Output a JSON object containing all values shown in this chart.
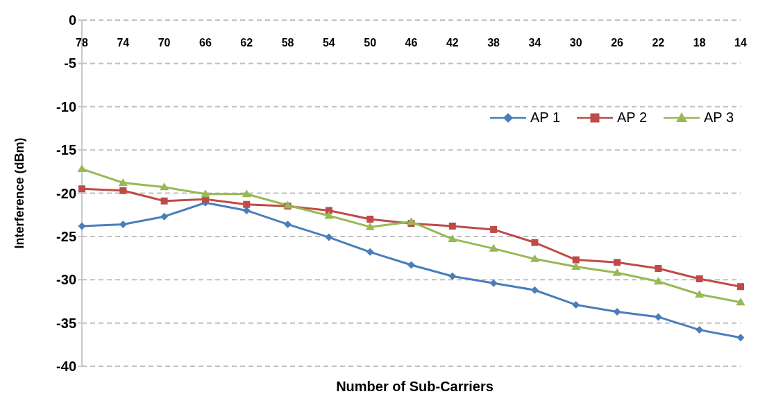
{
  "chart_data": {
    "type": "line",
    "xlabel": "Number of Sub-Carriers",
    "ylabel": "Interference (dBm)",
    "categories": [
      "78",
      "74",
      "70",
      "66",
      "62",
      "58",
      "54",
      "50",
      "46",
      "42",
      "38",
      "34",
      "30",
      "26",
      "22",
      "18",
      "14"
    ],
    "series": [
      {
        "name": "AP 1",
        "color": "#4a7ebb",
        "marker": "diamond",
        "values": [
          -23.8,
          -23.6,
          -22.7,
          -21.1,
          -22.0,
          -23.6,
          -25.1,
          -26.8,
          -28.3,
          -29.6,
          -30.4,
          -31.2,
          -32.9,
          -33.7,
          -34.3,
          -35.8,
          -36.7
        ]
      },
      {
        "name": "AP 2",
        "color": "#be4b48",
        "marker": "square",
        "values": [
          -19.5,
          -19.7,
          -20.9,
          -20.7,
          -21.3,
          -21.5,
          -22.0,
          -23.0,
          -23.5,
          -23.8,
          -24.2,
          -25.7,
          -27.7,
          -28.0,
          -28.7,
          -29.9,
          -30.8
        ]
      },
      {
        "name": "AP 3",
        "color": "#98b954",
        "marker": "triangle",
        "values": [
          -17.2,
          -18.8,
          -19.3,
          -20.1,
          -20.1,
          -21.4,
          -22.6,
          -23.9,
          -23.3,
          -25.3,
          -26.4,
          -27.6,
          -28.5,
          -29.2,
          -30.2,
          -31.7,
          -32.6
        ]
      }
    ],
    "ylim": [
      -40,
      0
    ],
    "yticks": [
      0,
      -5,
      -10,
      -15,
      -20,
      -25,
      -30,
      -35,
      -40
    ],
    "grid": "y",
    "legend": "top right",
    "line_style": "solid"
  }
}
